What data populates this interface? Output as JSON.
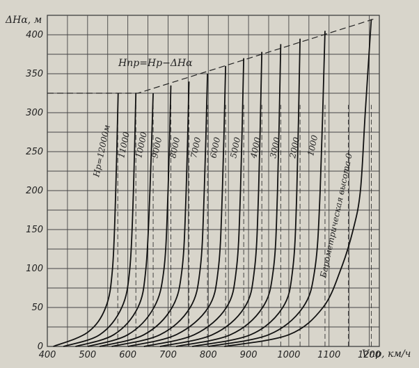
{
  "chart_data": {
    "type": "line",
    "title": "",
    "xlabel": "Vпр, км/ч",
    "ylabel": "ΔHα, м",
    "xlim": [
      400,
      1225
    ],
    "ylim": [
      0,
      425
    ],
    "x_ticks": [
      400,
      500,
      600,
      700,
      800,
      900,
      1000,
      1100,
      1200
    ],
    "y_ticks": [
      0,
      50,
      100,
      150,
      200,
      250,
      300,
      350,
      400
    ],
    "x_tick_labels": [
      "400",
      "500",
      "600",
      "700",
      "800",
      "900",
      "1000",
      "1100",
      "1200"
    ],
    "y_tick_labels": [
      "0",
      "50",
      "100",
      "150",
      "200",
      "250",
      "300",
      "350",
      "400"
    ],
    "grid": true,
    "limit_line_label": "Hпр=Hр−ΔHα",
    "limit_line": {
      "x": [
        400,
        625,
        1210
      ],
      "y": [
        325,
        325,
        420
      ]
    },
    "series": [
      {
        "name": "Hр=12000м",
        "x": [
          415,
          500,
          545,
          562,
          570,
          576
        ],
        "y": [
          0,
          18,
          50,
          100,
          200,
          325
        ]
      },
      {
        "name": "11000",
        "x": [
          440,
          530,
          585,
          605,
          614,
          620
        ],
        "y": [
          0,
          15,
          50,
          100,
          200,
          325
        ]
      },
      {
        "name": "10000",
        "x": [
          470,
          565,
          625,
          645,
          655,
          663
        ],
        "y": [
          0,
          15,
          50,
          100,
          200,
          325
        ]
      },
      {
        "name": "9000",
        "x": [
          500,
          600,
          665,
          690,
          700,
          707
        ],
        "y": [
          0,
          15,
          50,
          100,
          200,
          335
        ]
      },
      {
        "name": "8000",
        "x": [
          530,
          640,
          710,
          735,
          745,
          752
        ],
        "y": [
          0,
          15,
          50,
          100,
          200,
          340
        ]
      },
      {
        "name": "7000",
        "x": [
          560,
          680,
          755,
          780,
          790,
          798
        ],
        "y": [
          0,
          15,
          50,
          100,
          200,
          350
        ]
      },
      {
        "name": "6000",
        "x": [
          600,
          720,
          800,
          825,
          835,
          843
        ],
        "y": [
          0,
          15,
          50,
          100,
          200,
          360
        ]
      },
      {
        "name": "5000",
        "x": [
          640,
          765,
          845,
          870,
          880,
          888
        ],
        "y": [
          0,
          15,
          50,
          100,
          200,
          370
        ]
      },
      {
        "name": "4000",
        "x": [
          680,
          810,
          890,
          915,
          925,
          933
        ],
        "y": [
          0,
          15,
          50,
          100,
          200,
          378
        ]
      },
      {
        "name": "3000",
        "x": [
          720,
          855,
          935,
          962,
          972,
          980
        ],
        "y": [
          0,
          15,
          50,
          100,
          200,
          388
        ]
      },
      {
        "name": "2000",
        "x": [
          760,
          905,
          985,
          1010,
          1020,
          1028
        ],
        "y": [
          0,
          15,
          50,
          100,
          200,
          395
        ]
      },
      {
        "name": "1000",
        "x": [
          800,
          950,
          1035,
          1065,
          1078,
          1090
        ],
        "y": [
          0,
          15,
          50,
          100,
          200,
          405
        ]
      },
      {
        "name": "Барометрическая высота 0",
        "x": [
          840,
          1000,
          1085,
          1130,
          1160,
          1178,
          1190,
          1205
        ],
        "y": [
          0,
          15,
          50,
          100,
          150,
          200,
          300,
          420
        ]
      }
    ],
    "vertical_dashed_lines_x": [
      575,
      620,
      663,
      707,
      752,
      798,
      843,
      888,
      933,
      980,
      1028,
      1090,
      1148,
      1205
    ]
  }
}
